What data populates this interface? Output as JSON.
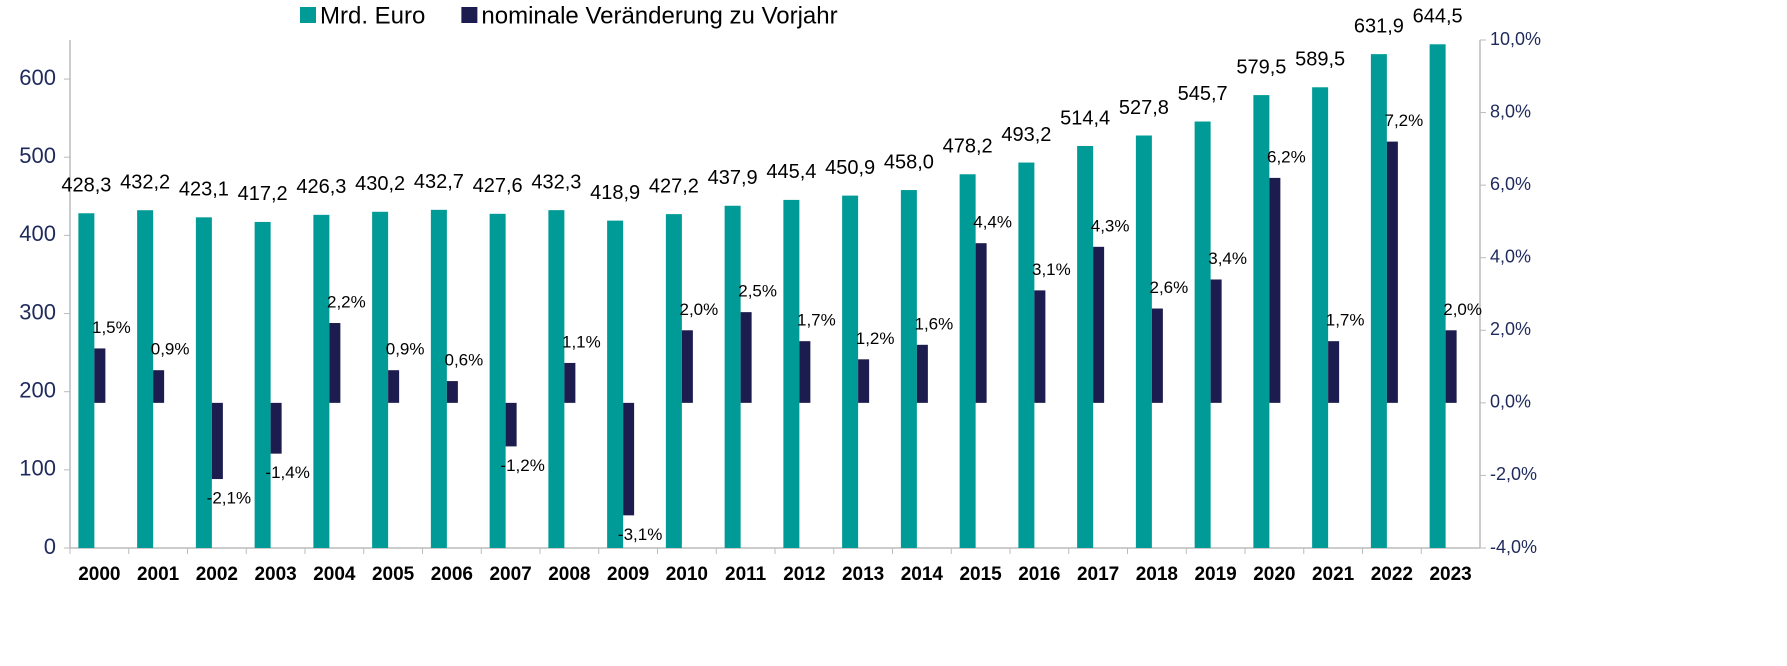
{
  "chart_data": {
    "type": "bar",
    "categories": [
      "2000",
      "2001",
      "2002",
      "2003",
      "2004",
      "2005",
      "2006",
      "2007",
      "2008",
      "2009",
      "2010",
      "2011",
      "2012",
      "2013",
      "2014",
      "2015",
      "2016",
      "2017",
      "2018",
      "2019",
      "2020",
      "2021",
      "2022",
      "2023"
    ],
    "series": [
      {
        "name": "Mrd. Euro",
        "color": "#009b96",
        "values": [
          428.3,
          432.2,
          423.1,
          417.2,
          426.3,
          430.2,
          432.7,
          427.6,
          432.3,
          418.9,
          427.2,
          437.9,
          445.4,
          450.9,
          458.0,
          478.2,
          493.2,
          514.4,
          527.8,
          545.7,
          579.5,
          589.5,
          631.9,
          644.5
        ],
        "value_labels": [
          "428,3",
          "432,2",
          "423,1",
          "417,2",
          "426,3",
          "430,2",
          "432,7",
          "427,6",
          "432,3",
          "418,9",
          "427,2",
          "437,9",
          "445,4",
          "450,9",
          "458,0",
          "478,2",
          "493,2",
          "514,4",
          "527,8",
          "545,7",
          "579,5",
          "589,5",
          "631,9",
          "644,5"
        ]
      },
      {
        "name": "nominale Veränderung zu Vorjahr",
        "color": "#1c1c4e",
        "axis": "y2",
        "values": [
          1.5,
          0.9,
          -2.1,
          -1.4,
          2.2,
          0.9,
          0.6,
          -1.2,
          1.1,
          -3.1,
          2.0,
          2.5,
          1.7,
          1.2,
          1.6,
          4.4,
          3.1,
          4.3,
          2.6,
          3.4,
          6.2,
          1.7,
          7.2,
          2.0
        ],
        "value_labels": [
          "1,5%",
          "0,9%",
          "-2,1%",
          "-1,4%",
          "2,2%",
          "0,9%",
          "0,6%",
          "-1,2%",
          "1,1%",
          "-3,1%",
          "2,0%",
          "2,5%",
          "1,7%",
          "1,2%",
          "1,6%",
          "4,4%",
          "3,1%",
          "4,3%",
          "2,6%",
          "3,4%",
          "6,2%",
          "1,7%",
          "7,2%",
          "2,0%"
        ]
      }
    ],
    "ylim": [
      0,
      650
    ],
    "yticks": [
      0,
      100,
      200,
      300,
      400,
      500,
      600
    ],
    "y2lim": [
      -4,
      10
    ],
    "y2ticks": [
      {
        "value": -4,
        "label": "-4,0%"
      },
      {
        "value": -2,
        "label": "-2,0%"
      },
      {
        "value": 0,
        "label": "0,0%"
      },
      {
        "value": 2,
        "label": "2,0%"
      },
      {
        "value": 4,
        "label": "4,0%"
      },
      {
        "value": 6,
        "label": "6,0%"
      },
      {
        "value": 8,
        "label": "8,0%"
      },
      {
        "value": 10,
        "label": "10,0%"
      }
    ],
    "legend": "top"
  }
}
